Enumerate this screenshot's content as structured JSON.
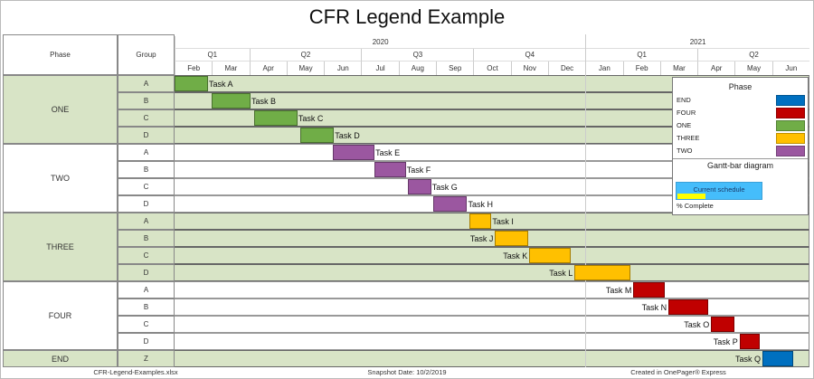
{
  "title": "CFR Legend Example",
  "columns": {
    "phase": "Phase",
    "group": "Group"
  },
  "timeline": {
    "years": [
      {
        "label": "2020",
        "months": 11
      },
      {
        "label": "2021",
        "months": 6
      }
    ],
    "quarters": [
      {
        "label": "Q1",
        "months": 2
      },
      {
        "label": "Q2",
        "months": 3
      },
      {
        "label": "Q3",
        "months": 3
      },
      {
        "label": "Q4",
        "months": 3
      },
      {
        "label": "Q1",
        "months": 3
      },
      {
        "label": "Q2",
        "months": 3
      }
    ],
    "months": [
      "Feb",
      "Mar",
      "Apr",
      "May",
      "Jun",
      "Jul",
      "Aug",
      "Sep",
      "Oct",
      "Nov",
      "Dec",
      "Jan",
      "Feb",
      "Mar",
      "Apr",
      "May",
      "Jun"
    ],
    "start": "2020-02-01"
  },
  "phases": [
    {
      "name": "ONE",
      "shaded": true,
      "groups": [
        "A",
        "B",
        "C",
        "D"
      ]
    },
    {
      "name": "TWO",
      "shaded": false,
      "groups": [
        "A",
        "B",
        "C",
        "D"
      ]
    },
    {
      "name": "THREE",
      "shaded": true,
      "groups": [
        "A",
        "B",
        "C",
        "D"
      ]
    },
    {
      "name": "FOUR",
      "shaded": false,
      "groups": [
        "A",
        "B",
        "C",
        "D"
      ]
    },
    {
      "name": "END",
      "shaded": true,
      "groups": [
        "Z"
      ]
    }
  ],
  "colors": {
    "ONE": "#70ad47",
    "TWO": "#9b57a0",
    "THREE": "#ffc000",
    "FOUR": "#c00000",
    "END": "#0070c0",
    "row_shade": "#d8e4c6"
  },
  "tasks": [
    {
      "label": "Task A",
      "phase": "ONE",
      "row": 0,
      "start": "2020-02-01",
      "end": "2020-02-27",
      "label_side": "right"
    },
    {
      "label": "Task B",
      "phase": "ONE",
      "row": 1,
      "start": "2020-03-01",
      "end": "2020-04-02",
      "label_side": "right"
    },
    {
      "label": "Task C",
      "phase": "ONE",
      "row": 2,
      "start": "2020-04-05",
      "end": "2020-05-10",
      "label_side": "right"
    },
    {
      "label": "Task D",
      "phase": "ONE",
      "row": 3,
      "start": "2020-05-12",
      "end": "2020-06-09",
      "label_side": "right"
    },
    {
      "label": "Task E",
      "phase": "TWO",
      "row": 4,
      "start": "2020-06-08",
      "end": "2020-07-12",
      "label_side": "right"
    },
    {
      "label": "Task F",
      "phase": "TWO",
      "row": 5,
      "start": "2020-07-12",
      "end": "2020-08-07",
      "label_side": "right"
    },
    {
      "label": "Task G",
      "phase": "TWO",
      "row": 6,
      "start": "2020-08-09",
      "end": "2020-08-28",
      "label_side": "right"
    },
    {
      "label": "Task H",
      "phase": "TWO",
      "row": 7,
      "start": "2020-08-30",
      "end": "2020-09-26",
      "label_side": "right"
    },
    {
      "label": "Task I",
      "phase": "THREE",
      "row": 8,
      "start": "2020-09-28",
      "end": "2020-10-16",
      "label_side": "right"
    },
    {
      "label": "Task J",
      "phase": "THREE",
      "row": 9,
      "start": "2020-10-19",
      "end": "2020-11-15",
      "label_side": "left"
    },
    {
      "label": "Task K",
      "phase": "THREE",
      "row": 10,
      "start": "2020-11-16",
      "end": "2020-12-20",
      "label_side": "left"
    },
    {
      "label": "Task L",
      "phase": "THREE",
      "row": 11,
      "start": "2020-12-23",
      "end": "2021-02-07",
      "label_side": "left"
    },
    {
      "label": "Task M",
      "phase": "FOUR",
      "row": 12,
      "start": "2021-02-09",
      "end": "2021-03-05",
      "label_side": "left"
    },
    {
      "label": "Task N",
      "phase": "FOUR",
      "row": 13,
      "start": "2021-03-08",
      "end": "2021-04-10",
      "label_side": "left"
    },
    {
      "label": "Task O",
      "phase": "FOUR",
      "row": 14,
      "start": "2021-04-12",
      "end": "2021-05-01",
      "label_side": "left"
    },
    {
      "label": "Task P",
      "phase": "FOUR",
      "row": 15,
      "start": "2021-05-05",
      "end": "2021-05-22",
      "label_side": "left"
    },
    {
      "label": "Task Q",
      "phase": "END",
      "row": 16,
      "start": "2021-05-24",
      "end": "2021-06-18",
      "label_side": "left"
    }
  ],
  "legend": {
    "title": "Phase",
    "items": [
      {
        "label": "END",
        "color": "#0070c0"
      },
      {
        "label": "FOUR",
        "color": "#c00000"
      },
      {
        "label": "ONE",
        "color": "#70ad47"
      },
      {
        "label": "THREE",
        "color": "#ffc000"
      },
      {
        "label": "TWO",
        "color": "#9b57a0"
      }
    ],
    "gantt_title": "Gantt-bar diagram",
    "bar_label": "Current schedule",
    "bar_color": "#45bdfb",
    "complete_color": "#ffff00",
    "complete_label": "% Complete",
    "complete_fraction": 0.33
  },
  "footer": {
    "file": "CFR-Legend-Examples.xlsx",
    "snapshot": "Snapshot Date: 10/2/2019",
    "created": "Created in OnePager® Express"
  }
}
